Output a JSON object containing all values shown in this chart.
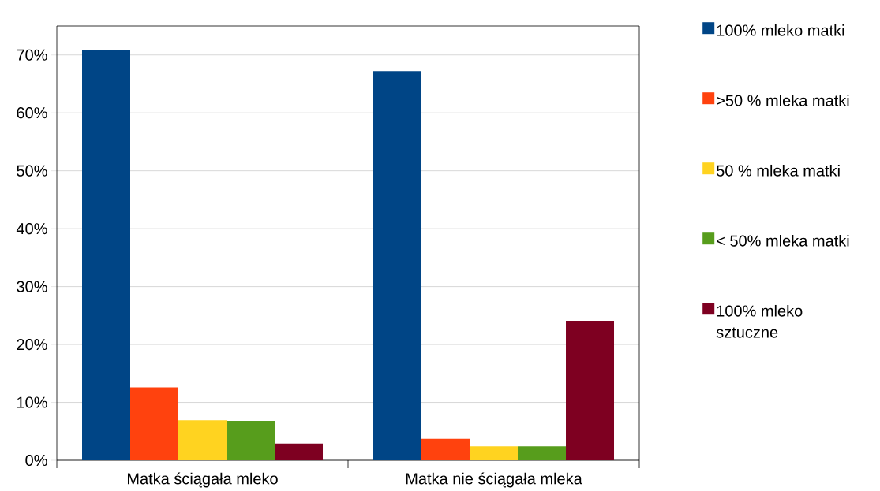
{
  "chart_data": {
    "type": "bar",
    "categories": [
      "Matka ściągała mleko",
      "Matka nie ściągała mleka"
    ],
    "series": [
      {
        "name": "100% mleko matki",
        "color": "#004586",
        "values": [
          70.8,
          67.2
        ]
      },
      {
        "name": ">50 % mleka matki",
        "color": "#ff420e",
        "values": [
          12.6,
          3.7
        ]
      },
      {
        "name": "50 % mleka matki",
        "color": "#ffd320",
        "values": [
          6.9,
          2.4
        ]
      },
      {
        "name": "< 50% mleka matki",
        "color": "#579d1c",
        "values": [
          6.8,
          2.4
        ]
      },
      {
        "name": "100% mleko sztuczne",
        "color": "#7e0021",
        "values": [
          2.9,
          24.1
        ]
      }
    ],
    "ylim": [
      0,
      75
    ],
    "yticks": [
      {
        "value": 0,
        "label": "0%"
      },
      {
        "value": 10,
        "label": "10%"
      },
      {
        "value": 20,
        "label": "20%"
      },
      {
        "value": 30,
        "label": "30%"
      },
      {
        "value": 40,
        "label": "40%"
      },
      {
        "value": 50,
        "label": "50%"
      },
      {
        "value": 60,
        "label": "60%"
      },
      {
        "value": 70,
        "label": "70%"
      }
    ],
    "grid": "y",
    "legend": "right"
  }
}
